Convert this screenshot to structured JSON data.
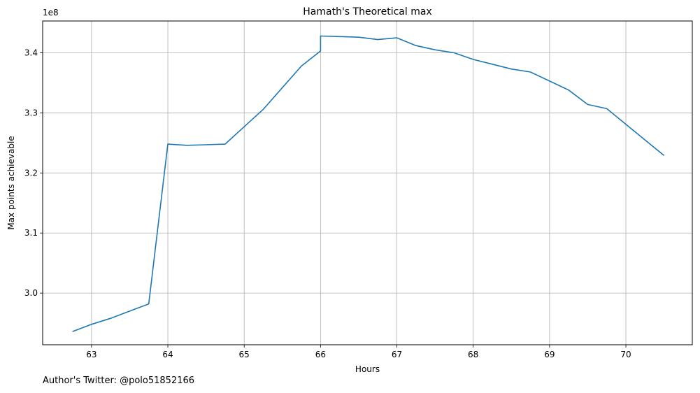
{
  "chart_data": {
    "type": "line",
    "title": "Hamath's Theoretical max",
    "xlabel": "Hours",
    "ylabel": "Max points achievable",
    "y_scale_label": "1e8",
    "xlim": [
      62.36,
      70.87
    ],
    "ylim": [
      2.914,
      3.453
    ],
    "xticks": [
      63,
      64,
      65,
      66,
      67,
      68,
      69,
      70
    ],
    "yticks": [
      3.0,
      3.1,
      3.2,
      3.3,
      3.4
    ],
    "ytick_labels": [
      "3.0",
      "3.1",
      "3.2",
      "3.3",
      "3.4"
    ],
    "grid": true,
    "color": "#1f77b4",
    "series": [
      {
        "x": [
          62.75,
          63.0,
          63.25,
          63.5,
          63.75,
          64.0,
          64.25,
          64.5,
          64.75,
          65.0,
          65.25,
          65.5,
          65.75,
          66.0,
          66.0,
          66.25,
          66.5,
          66.75,
          67.0,
          67.25,
          67.5,
          67.75,
          68.0,
          68.25,
          68.5,
          68.75,
          69.0,
          69.25,
          69.5,
          69.75,
          70.0,
          70.25,
          70.5
        ],
        "y": [
          2.936,
          2.948,
          2.958,
          2.97,
          2.982,
          3.248,
          3.246,
          3.247,
          3.248,
          3.277,
          3.306,
          3.342,
          3.378,
          3.403,
          3.428,
          3.427,
          3.426,
          3.422,
          3.425,
          3.412,
          3.405,
          3.4,
          3.389,
          3.381,
          3.373,
          3.368,
          3.353,
          3.338,
          3.314,
          3.307,
          3.281,
          3.255,
          3.229
        ]
      }
    ]
  },
  "footnote": "Author's Twitter: @polo51852166"
}
